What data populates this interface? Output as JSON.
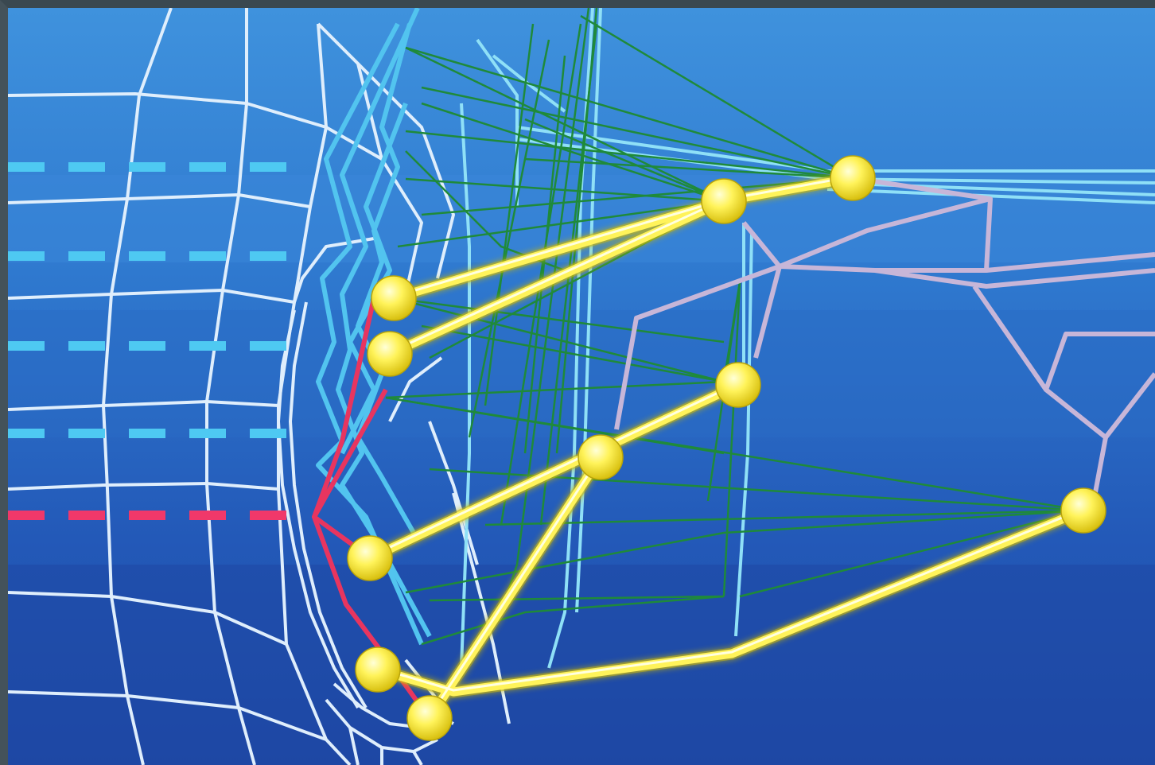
{
  "scene": {
    "subject": "wireframe-kinematics-illustration",
    "colors": {
      "background_top": "#3f92dd",
      "background_bottom": "#1f4aa8",
      "mesh_white": "#dfeefc",
      "mesh_cyan": "#59c8f0",
      "dash_cyan": "#4ec9f2",
      "dash_red": "#f0386a",
      "red_bone": "#e8355f",
      "green_rays": "#1f8a3a",
      "yellow_bone": "#fff35a",
      "yellow_joint": "#f3e421",
      "lavender_mesh": "#c7b6d8",
      "frame_border": "#44525a"
    },
    "joint_count": 10,
    "dash_rows": 5
  }
}
